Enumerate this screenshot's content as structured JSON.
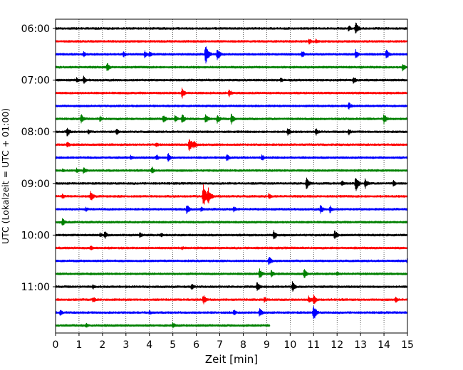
{
  "chart_data": {
    "type": "line",
    "title": "",
    "xlabel": "Zeit  [min]",
    "ylabel": "UTC (Lokalzeit = UTC + 01:00)",
    "xlim": [
      0,
      15
    ],
    "x_ticks": [
      "0",
      "1",
      "2",
      "3",
      "4",
      "5",
      "6",
      "7",
      "8",
      "9",
      "10",
      "11",
      "12",
      "13",
      "14",
      "15"
    ],
    "y_tick_labels": [
      "06:00",
      "07:00",
      "08:00",
      "09:00",
      "10:00",
      "11:00"
    ],
    "grid": "vertical dotted lines at each minute",
    "colors": [
      "#000000",
      "#ff0000",
      "#0000ff",
      "#008000"
    ],
    "traces": [
      {
        "start": "06:00",
        "color": "#000000",
        "end_min": 15,
        "events": [
          [
            12.8,
            10
          ],
          [
            12.5,
            5
          ]
        ]
      },
      {
        "start": "06:15",
        "color": "#ff0000",
        "end_min": 15,
        "events": [
          [
            10.8,
            5
          ],
          [
            11.1,
            4
          ]
        ]
      },
      {
        "start": "06:30",
        "color": "#0000ff",
        "end_min": 15,
        "events": [
          [
            6.4,
            17
          ],
          [
            6.9,
            9
          ],
          [
            1.2,
            5
          ],
          [
            2.9,
            5
          ],
          [
            3.8,
            6
          ],
          [
            4.0,
            5
          ],
          [
            10.5,
            6
          ],
          [
            12.8,
            7
          ],
          [
            14.1,
            8
          ]
        ]
      },
      {
        "start": "06:45",
        "color": "#008000",
        "end_min": 15,
        "events": [
          [
            2.2,
            7
          ],
          [
            14.8,
            6
          ]
        ]
      },
      {
        "start": "07:00",
        "color": "#000000",
        "end_min": 15,
        "events": [
          [
            1.2,
            6
          ],
          [
            0.9,
            4
          ],
          [
            12.7,
            6
          ],
          [
            9.6,
            4
          ]
        ]
      },
      {
        "start": "07:15",
        "color": "#ff0000",
        "end_min": 15,
        "events": [
          [
            5.4,
            8
          ],
          [
            7.4,
            6
          ]
        ]
      },
      {
        "start": "07:30",
        "color": "#0000ff",
        "end_min": 15,
        "events": [
          [
            12.5,
            6
          ]
        ]
      },
      {
        "start": "07:45",
        "color": "#008000",
        "end_min": 15,
        "events": [
          [
            1.1,
            7
          ],
          [
            1.9,
            5
          ],
          [
            4.6,
            7
          ],
          [
            5.1,
            6
          ],
          [
            5.4,
            8
          ],
          [
            6.4,
            8
          ],
          [
            6.9,
            7
          ],
          [
            7.5,
            8
          ],
          [
            14.0,
            8
          ]
        ]
      },
      {
        "start": "08:00",
        "color": "#000000",
        "end_min": 15,
        "events": [
          [
            0.5,
            7
          ],
          [
            1.4,
            4
          ],
          [
            2.6,
            5
          ],
          [
            9.9,
            7
          ],
          [
            11.1,
            6
          ],
          [
            12.5,
            5
          ]
        ]
      },
      {
        "start": "08:15",
        "color": "#ff0000",
        "end_min": 15,
        "events": [
          [
            5.7,
            12
          ],
          [
            5.9,
            7
          ],
          [
            0.5,
            5
          ],
          [
            4.3,
            4
          ]
        ]
      },
      {
        "start": "08:30",
        "color": "#0000ff",
        "end_min": 15,
        "events": [
          [
            4.8,
            7
          ],
          [
            4.3,
            5
          ],
          [
            7.3,
            6
          ],
          [
            8.8,
            5
          ],
          [
            3.2,
            4
          ]
        ]
      },
      {
        "start": "08:45",
        "color": "#008000",
        "end_min": 15,
        "events": [
          [
            1.2,
            6
          ],
          [
            0.9,
            4
          ],
          [
            4.1,
            6
          ],
          [
            0.3,
            3
          ]
        ]
      },
      {
        "start": "09:00",
        "color": "#000000",
        "end_min": 15,
        "events": [
          [
            12.8,
            12
          ],
          [
            13.2,
            8
          ],
          [
            10.7,
            10
          ],
          [
            12.2,
            5
          ],
          [
            14.4,
            5
          ]
        ]
      },
      {
        "start": "09:15",
        "color": "#ff0000",
        "end_min": 15,
        "events": [
          [
            6.3,
            18
          ],
          [
            6.5,
            14
          ],
          [
            1.5,
            8
          ],
          [
            9.1,
            5
          ],
          [
            0.3,
            4
          ]
        ]
      },
      {
        "start": "09:30",
        "color": "#0000ff",
        "end_min": 15,
        "events": [
          [
            5.6,
            8
          ],
          [
            1.3,
            4
          ],
          [
            11.3,
            7
          ],
          [
            11.7,
            6
          ],
          [
            7.6,
            5
          ],
          [
            6.2,
            4
          ]
        ]
      },
      {
        "start": "09:45",
        "color": "#008000",
        "end_min": 15,
        "events": [
          [
            0.3,
            6
          ]
        ]
      },
      {
        "start": "10:00",
        "color": "#000000",
        "end_min": 15,
        "events": [
          [
            9.3,
            8
          ],
          [
            11.9,
            8
          ],
          [
            2.1,
            6
          ],
          [
            3.6,
            5
          ],
          [
            1.9,
            4
          ],
          [
            4.5,
            4
          ]
        ]
      },
      {
        "start": "10:15",
        "color": "#ff0000",
        "end_min": 15,
        "events": [
          [
            1.5,
            4
          ],
          [
            5.4,
            3
          ]
        ]
      },
      {
        "start": "10:30",
        "color": "#0000ff",
        "end_min": 15,
        "events": [
          [
            9.1,
            7
          ],
          [
            15.0,
            5
          ]
        ]
      },
      {
        "start": "10:45",
        "color": "#008000",
        "end_min": 15,
        "events": [
          [
            8.7,
            8
          ],
          [
            9.2,
            6
          ],
          [
            10.6,
            7
          ],
          [
            12.0,
            4
          ]
        ]
      },
      {
        "start": "11:00",
        "color": "#000000",
        "end_min": 15,
        "events": [
          [
            8.6,
            8
          ],
          [
            10.1,
            8
          ],
          [
            1.6,
            4
          ],
          [
            5.8,
            5
          ]
        ]
      },
      {
        "start": "11:15",
        "color": "#ff0000",
        "end_min": 15,
        "events": [
          [
            6.3,
            8
          ],
          [
            11.0,
            8
          ],
          [
            10.8,
            6
          ],
          [
            1.6,
            5
          ],
          [
            8.9,
            5
          ],
          [
            14.5,
            5
          ]
        ]
      },
      {
        "start": "11:30",
        "color": "#0000ff",
        "end_min": 15,
        "events": [
          [
            11.0,
            12
          ],
          [
            0.2,
            5
          ],
          [
            8.7,
            7
          ],
          [
            7.6,
            5
          ],
          [
            4.0,
            4
          ]
        ]
      },
      {
        "start": "11:45",
        "color": "#008000",
        "end_min": 9.15,
        "events": [
          [
            5.0,
            5
          ],
          [
            1.3,
            4
          ]
        ]
      }
    ]
  }
}
